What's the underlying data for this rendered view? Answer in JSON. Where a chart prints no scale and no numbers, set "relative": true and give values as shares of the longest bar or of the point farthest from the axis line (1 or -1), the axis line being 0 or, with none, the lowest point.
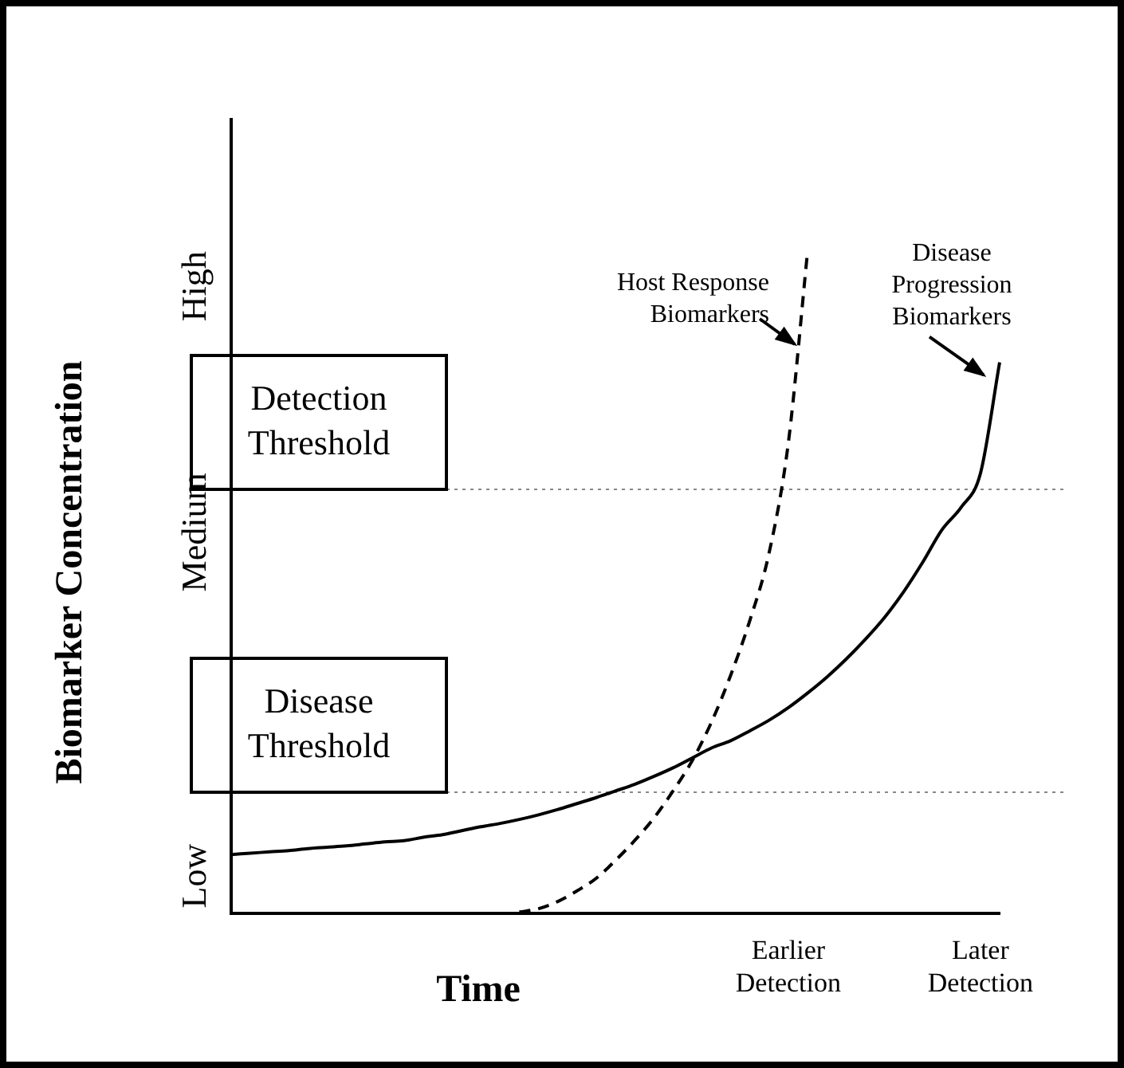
{
  "chart_data": {
    "type": "line",
    "relative": true,
    "xlabel": "Time",
    "ylabel": "Biomarker Concentration",
    "categories": [
      null,
      null,
      null,
      null,
      null,
      null,
      null,
      null,
      null,
      null,
      null,
      null,
      null,
      null,
      null,
      null,
      null,
      null,
      null,
      null,
      null,
      null,
      null,
      null,
      null,
      null,
      null,
      null,
      null,
      "Earlier Detection",
      null,
      null,
      null,
      null,
      null,
      null,
      null,
      null,
      null,
      "Later Detection",
      null
    ],
    "series": [
      {
        "name": "Host Response Biomarkers",
        "color": "#000000",
        "line_style": "dashed",
        "values": [
          null,
          null,
          null,
          null,
          null,
          null,
          null,
          null,
          null,
          null,
          null,
          null,
          null,
          null,
          null,
          0.002,
          0.007,
          0.018,
          0.034,
          0.053,
          0.08,
          0.11,
          0.144,
          0.185,
          0.231,
          0.289,
          0.36,
          0.443,
          0.545,
          0.711,
          1,
          null,
          null,
          null,
          null,
          null,
          null,
          null,
          null,
          null,
          null
        ]
      },
      {
        "name": "Disease Progression Biomarkers",
        "color": "#000000",
        "line_style": "solid",
        "values": [
          0.089,
          0.091,
          0.093,
          0.095,
          0.098,
          0.1,
          0.102,
          0.105,
          0.108,
          0.11,
          0.115,
          0.119,
          0.125,
          0.131,
          0.136,
          0.142,
          0.149,
          0.157,
          0.166,
          0.175,
          0.185,
          0.195,
          0.207,
          0.22,
          0.235,
          0.25,
          0.261,
          0.276,
          0.292,
          0.311,
          0.333,
          0.357,
          0.384,
          0.414,
          0.447,
          0.486,
          0.531,
          0.58,
          0.614,
          0.665,
          0.833
        ]
      }
    ],
    "ref_lines": [
      {
        "axis": "y",
        "value": 0.641,
        "label": "Detection Threshold",
        "color": "#888888",
        "line_style": "dotted"
      },
      {
        "axis": "y",
        "value": 0.183,
        "label": "Disease Threshold",
        "color": "#888888",
        "line_style": "dotted"
      }
    ],
    "annotations": [
      "Low",
      "Medium",
      "High"
    ],
    "marker": "none",
    "grid": false,
    "legend": false
  }
}
